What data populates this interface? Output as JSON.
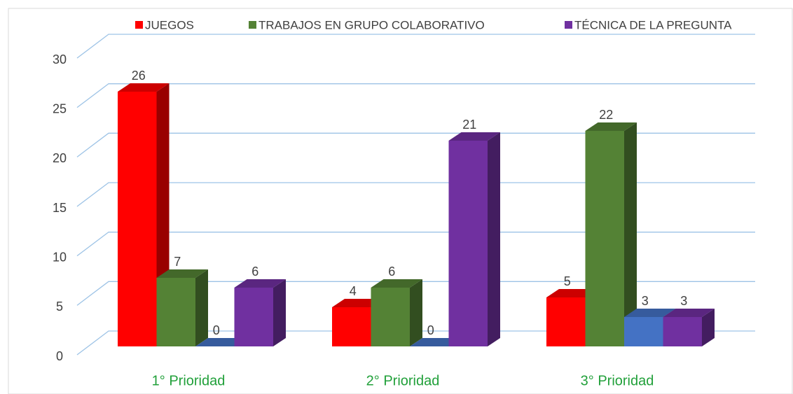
{
  "chart_data": {
    "type": "bar3d",
    "categories": [
      "1° Prioridad",
      "2° Prioridad",
      "3° Prioridad"
    ],
    "series": [
      {
        "name": "JUEGOS",
        "color": "#ff0000",
        "values": [
          26,
          4,
          5
        ]
      },
      {
        "name": "TRABAJOS EN GRUPO COLABORATIVO",
        "color": "#548235",
        "values": [
          7,
          6,
          22
        ]
      },
      {
        "name": null,
        "color": "#4472c4",
        "values": [
          0,
          0,
          3
        ]
      },
      {
        "name": "TÉCNICA DE LA PREGUNTA",
        "color": "#7030a0",
        "values": [
          6,
          21,
          3
        ]
      }
    ],
    "ylim": [
      0,
      30
    ],
    "yticks": [
      0,
      5,
      10,
      15,
      20,
      25,
      30
    ],
    "grid": true,
    "legend": "top"
  }
}
